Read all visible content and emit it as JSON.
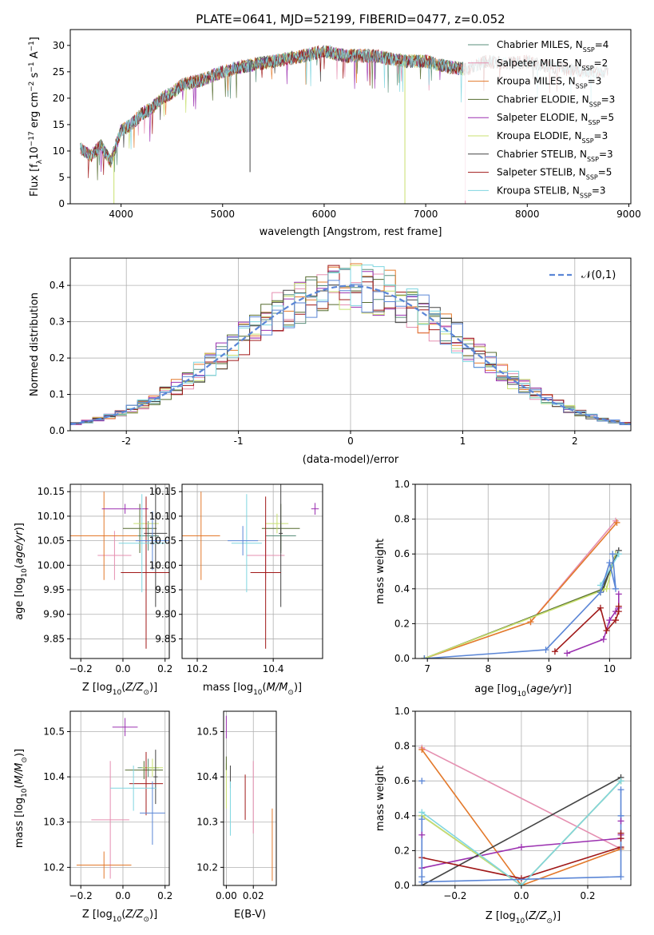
{
  "title": "PLATE=0641, MJD=52199, FIBERID=0477, z=0.052",
  "colors": {
    "ch_miles": "#5a8f7b",
    "sa_miles": "#e58fb0",
    "kr_miles": "#e3792b",
    "ch_elodie": "#556b2f",
    "sa_elodie": "#9b30b0",
    "kr_elodie": "#c8e070",
    "ch_stelib": "#444444",
    "sa_stelib": "#a01818",
    "kr_stelib": "#7fd6e0",
    "normal": "#5b86d6"
  },
  "chart_data": [
    {
      "type": "line",
      "panel": "spectrum",
      "title": "PLATE=0641, MJD=52199, FIBERID=0477, z=0.052",
      "xlabel": "wavelength [Angstrom, rest frame]",
      "ylabel": "Flux [f_λ 10^-17 erg cm^-2 s^-1 A^-1]",
      "xlim": [
        3500,
        9020
      ],
      "ylim": [
        0,
        33
      ],
      "xticks": [
        4000,
        5000,
        6000,
        7000,
        8000,
        9000
      ],
      "yticks": [
        0,
        5,
        10,
        15,
        20,
        25,
        30
      ],
      "grid": false,
      "legend_position": "right",
      "legend": [
        {
          "label": "Chabrier MILES, N",
          "sub": "SSP",
          "tail": "=4",
          "color": "ch_miles"
        },
        {
          "label": "Salpeter MILES, N",
          "sub": "SSP",
          "tail": "=2",
          "color": "sa_miles"
        },
        {
          "label": "Kroupa MILES, N",
          "sub": "SSP",
          "tail": "=3",
          "color": "kr_miles"
        },
        {
          "label": "Chabrier ELODIE, N",
          "sub": "SSP",
          "tail": "=3",
          "color": "ch_elodie"
        },
        {
          "label": "Salpeter ELODIE, N",
          "sub": "SSP",
          "tail": "=5",
          "color": "sa_elodie"
        },
        {
          "label": "Kroupa ELODIE, N",
          "sub": "SSP",
          "tail": "=3",
          "color": "kr_elodie"
        },
        {
          "label": "Chabrier STELIB, N",
          "sub": "SSP",
          "tail": "=3",
          "color": "ch_stelib"
        },
        {
          "label": "Salpeter STELIB, N",
          "sub": "SSP",
          "tail": "=5",
          "color": "sa_stelib"
        },
        {
          "label": "Kroupa STELIB, N",
          "sub": "SSP",
          "tail": "=3",
          "color": "kr_stelib"
        }
      ],
      "continuum": {
        "x": [
          3600,
          3700,
          3800,
          3900,
          4000,
          4100,
          4200,
          4300,
          4400,
          4500,
          4600,
          4800,
          5000,
          5200,
          5500,
          5800,
          6000,
          6200,
          6500,
          6800,
          7000,
          7200,
          7400,
          7600,
          7800,
          8000,
          8200,
          8400,
          8600,
          8800
        ],
        "y": [
          10.5,
          9,
          11,
          8,
          14,
          15,
          17,
          18,
          20,
          21,
          22.5,
          23.5,
          25,
          26,
          27,
          28,
          29,
          28,
          28,
          27,
          27,
          26,
          25.5,
          27,
          26.5,
          27,
          26,
          25.5,
          25,
          25
        ]
      },
      "dips": [
        {
          "x": 3930,
          "y": 0,
          "color": "kr_elodie"
        },
        {
          "x": 5270,
          "y": 6,
          "color": "ch_stelib"
        },
        {
          "x": 6795,
          "y": 0,
          "color": "kr_elodie"
        },
        {
          "x": 7390,
          "y": 0,
          "color": "sa_miles"
        }
      ]
    },
    {
      "type": "line",
      "panel": "residuals",
      "xlabel": "(data-model)/error",
      "ylabel": "Normed distribution",
      "xlim": [
        -2.5,
        2.5
      ],
      "ylim": [
        0,
        0.475
      ],
      "xticks": [
        -2,
        -1,
        0,
        1,
        2
      ],
      "yticks": [
        0.0,
        0.1,
        0.2,
        0.3,
        0.4
      ],
      "grid": true,
      "legend_label": "𝒩(0,1)",
      "legend_position": "upper right",
      "normal": {
        "mean": 0,
        "sigma": 1
      },
      "bins": 50
    },
    {
      "type": "scatter",
      "panel": "age-vs-Z",
      "xlabel": "Z [log10(Z/Z⊙)]",
      "ylabel": "age [log10(age/yr)]",
      "xlim": [
        -0.25,
        0.22
      ],
      "ylim": [
        9.81,
        10.165
      ],
      "xticks": [
        -0.2,
        0.0,
        0.2
      ],
      "yticks": [
        9.85,
        9.9,
        9.95,
        10.0,
        10.05,
        10.1,
        10.15
      ],
      "grid": true,
      "points": [
        {
          "model": "ch_miles",
          "x": 0.12,
          "y": 10.06,
          "ex": 0.05,
          "ey": 0.03
        },
        {
          "model": "sa_miles",
          "x": -0.04,
          "y": 10.02,
          "ex": 0.08,
          "ey": 0.05
        },
        {
          "model": "kr_miles",
          "x": -0.09,
          "y": 10.06,
          "ex": 0.16,
          "ey": 0.09
        },
        {
          "model": "ch_elodie",
          "x": 0.08,
          "y": 10.075,
          "ex": 0.08,
          "ey": 0.05
        },
        {
          "model": "sa_elodie",
          "x": 0.01,
          "y": 10.115,
          "ex": 0.11,
          "ey": 0.01
        },
        {
          "model": "kr_elodie",
          "x": 0.11,
          "y": 10.085,
          "ex": 0.06,
          "ey": 0.02
        },
        {
          "model": "ch_stelib",
          "x": 0.155,
          "y": 10.065,
          "ex": 0.055,
          "ey": 0.15
        },
        {
          "model": "sa_stelib",
          "x": 0.11,
          "y": 9.985,
          "ex": 0.12,
          "ey": 0.155
        },
        {
          "model": "kr_stelib",
          "x": 0.09,
          "y": 10.045,
          "ex": 0.11,
          "ey": 0.1
        },
        {
          "model": "normal",
          "x": 0.14,
          "y": 10.05,
          "ex": 0.08,
          "ey": 0.06
        }
      ]
    },
    {
      "type": "scatter",
      "panel": "age-vs-mass",
      "xlabel": "mass [log10(M/M⊙)]",
      "ylabel": "",
      "xlim": [
        10.16,
        10.53
      ],
      "ylim": [
        9.81,
        10.165
      ],
      "xticks": [
        10.2,
        10.4
      ],
      "yticks": [
        9.85,
        9.9,
        9.95,
        10.0,
        10.05,
        10.1,
        10.15
      ],
      "grid": true,
      "points": [
        {
          "model": "ch_miles",
          "x": 10.42,
          "y": 10.06,
          "ex": 0.04,
          "ey": 0.03
        },
        {
          "model": "sa_miles",
          "x": 10.38,
          "y": 10.02,
          "ex": 0.05,
          "ey": 0.05
        },
        {
          "model": "kr_miles",
          "x": 10.21,
          "y": 10.06,
          "ex": 0.05,
          "ey": 0.09
        },
        {
          "model": "ch_elodie",
          "x": 10.42,
          "y": 10.075,
          "ex": 0.05,
          "ey": 0.05
        },
        {
          "model": "sa_elodie",
          "x": 10.51,
          "y": 10.115,
          "ex": 0.01,
          "ey": 0.012
        },
        {
          "model": "kr_elodie",
          "x": 10.41,
          "y": 10.085,
          "ex": 0.03,
          "ey": 0.02
        },
        {
          "model": "ch_stelib",
          "x": 10.42,
          "y": 10.065,
          "ex": 0.005,
          "ey": 0.15
        },
        {
          "model": "sa_stelib",
          "x": 10.38,
          "y": 9.985,
          "ex": 0.04,
          "ey": 0.155
        },
        {
          "model": "kr_stelib",
          "x": 10.33,
          "y": 10.045,
          "ex": 0.04,
          "ey": 0.1
        },
        {
          "model": "normal",
          "x": 10.32,
          "y": 10.05,
          "ex": 0.04,
          "ey": 0.03
        }
      ]
    },
    {
      "type": "line",
      "panel": "weight-vs-age",
      "xlabel": "age [log10(age/yr)]",
      "ylabel": "mass weight",
      "xlim": [
        6.8,
        10.35
      ],
      "ylim": [
        0,
        1.0
      ],
      "xticks": [
        7,
        8,
        9,
        10
      ],
      "yticks": [
        0.0,
        0.2,
        0.4,
        0.6,
        0.8,
        1.0
      ],
      "grid": true,
      "series": [
        {
          "model": "sa_miles",
          "x": [
            8.7,
            10.1
          ],
          "y": [
            0.21,
            0.79
          ]
        },
        {
          "model": "kr_miles",
          "x": [
            6.95,
            8.7,
            10.12
          ],
          "y": [
            0.0,
            0.21,
            0.78
          ]
        },
        {
          "model": "ch_elodie",
          "x": [
            6.95,
            9.9,
            10.1
          ],
          "y": [
            0.0,
            0.4,
            0.6
          ]
        },
        {
          "model": "sa_elodie",
          "x": [
            9.3,
            9.9,
            10.0,
            10.1,
            10.15,
            10.15
          ],
          "y": [
            0.03,
            0.11,
            0.22,
            0.27,
            0.29,
            0.37
          ]
        },
        {
          "model": "kr_elodie",
          "x": [
            6.95,
            9.95,
            10.1
          ],
          "y": [
            0.0,
            0.4,
            0.6
          ]
        },
        {
          "model": "ch_stelib",
          "x": [
            9.85,
            10.15
          ],
          "y": [
            0.38,
            0.62
          ]
        },
        {
          "model": "sa_stelib",
          "x": [
            9.1,
            9.85,
            9.95,
            10.1,
            10.15,
            10.15
          ],
          "y": [
            0.04,
            0.29,
            0.16,
            0.22,
            0.27,
            0.3
          ]
        },
        {
          "model": "kr_stelib",
          "x": [
            9.85,
            10.15
          ],
          "y": [
            0.42,
            0.6
          ]
        },
        {
          "model": "normal",
          "x": [
            6.95,
            8.95,
            9.85,
            10.0,
            10.1,
            10.05
          ],
          "y": [
            0.0,
            0.05,
            0.38,
            0.55,
            0.4,
            0.6
          ]
        }
      ]
    },
    {
      "type": "scatter",
      "panel": "mass-vs-Z",
      "xlabel": "Z [log10(Z/Z⊙)]",
      "ylabel": "mass [log10(M/M⊙)]",
      "xlim": [
        -0.25,
        0.22
      ],
      "ylim": [
        10.16,
        10.545
      ],
      "xticks": [
        -0.2,
        0.0,
        0.2
      ],
      "yticks": [
        10.2,
        10.3,
        10.4,
        10.5
      ],
      "grid": true,
      "points": [
        {
          "model": "ch_miles",
          "x": 0.12,
          "y": 10.42,
          "ex": 0.05,
          "ey": 0.02
        },
        {
          "model": "sa_miles",
          "x": -0.06,
          "y": 10.305,
          "ex": 0.09,
          "ey": 0.13
        },
        {
          "model": "kr_miles",
          "x": -0.09,
          "y": 10.205,
          "ex": 0.13,
          "ey": 0.03
        },
        {
          "model": "ch_elodie",
          "x": 0.1,
          "y": 10.415,
          "ex": 0.09,
          "ey": 0.02
        },
        {
          "model": "sa_elodie",
          "x": 0.01,
          "y": 10.51,
          "ex": 0.06,
          "ey": 0.02
        },
        {
          "model": "kr_elodie",
          "x": 0.14,
          "y": 10.42,
          "ex": 0.05,
          "ey": 0.02
        },
        {
          "model": "ch_stelib",
          "x": 0.155,
          "y": 10.4,
          "ex": 0.01,
          "ey": 0.06
        },
        {
          "model": "sa_stelib",
          "x": 0.11,
          "y": 10.385,
          "ex": 0.08,
          "ey": 0.07
        },
        {
          "model": "kr_stelib",
          "x": 0.05,
          "y": 10.375,
          "ex": 0.11,
          "ey": 0.05
        },
        {
          "model": "normal",
          "x": 0.14,
          "y": 10.32,
          "ex": 0.06,
          "ey": 0.07
        }
      ]
    },
    {
      "type": "scatter",
      "panel": "mass-vs-ebv",
      "xlabel": "E(B-V)",
      "ylabel": "",
      "xlim": [
        -0.002,
        0.037
      ],
      "ylim": [
        10.16,
        10.545
      ],
      "xticks": [
        0.0,
        0.02
      ],
      "yticks": [
        10.2,
        10.3,
        10.4,
        10.5
      ],
      "grid": true,
      "points": [
        {
          "model": "sa_elodie",
          "x": 0.0,
          "y": 10.51,
          "ey": 0.025
        },
        {
          "model": "kr_elodie",
          "x": 0.0,
          "y": 10.38,
          "ey": 0.05
        },
        {
          "model": "ch_stelib",
          "x": 0.003,
          "y": 10.4,
          "ey": 0.025
        },
        {
          "model": "kr_stelib",
          "x": 0.003,
          "y": 10.33,
          "ey": 0.06
        },
        {
          "model": "sa_stelib",
          "x": 0.014,
          "y": 10.355,
          "ey": 0.05
        },
        {
          "model": "sa_miles",
          "x": 0.02,
          "y": 10.355,
          "ey": 0.08
        },
        {
          "model": "kr_miles",
          "x": 0.034,
          "y": 10.25,
          "ey": 0.08
        },
        {
          "model": "ch_elodie",
          "x": 0.0,
          "y": 10.43,
          "ey": 0.015
        }
      ]
    },
    {
      "type": "line",
      "panel": "weight-vs-Z",
      "xlabel": "Z [log10(Z/Z⊙)]",
      "ylabel": "mass weight",
      "xlim": [
        -0.32,
        0.33
      ],
      "ylim": [
        0,
        1.0
      ],
      "xticks": [
        -0.2,
        0.0,
        0.2
      ],
      "yticks": [
        0.0,
        0.2,
        0.4,
        0.6,
        0.8,
        1.0
      ],
      "grid": true,
      "series": [
        {
          "model": "sa_miles",
          "x": [
            -0.3,
            0.3
          ],
          "y": [
            0.79,
            0.21
          ]
        },
        {
          "model": "kr_miles",
          "x": [
            -0.3,
            0.0,
            0.3
          ],
          "y": [
            0.78,
            0.0,
            0.21
          ]
        },
        {
          "model": "ch_elodie",
          "x": [
            -0.3,
            0.0,
            0.3
          ],
          "y": [
            0.4,
            0.0,
            0.6
          ]
        },
        {
          "model": "sa_elodie",
          "x": [
            -0.3,
            0.0,
            0.3
          ],
          "y": [
            0.1,
            0.22,
            0.27
          ]
        },
        {
          "model": "kr_elodie",
          "x": [
            -0.3,
            0.0,
            0.3
          ],
          "y": [
            0.4,
            0.0,
            0.6
          ]
        },
        {
          "model": "ch_stelib",
          "x": [
            -0.3,
            0.3
          ],
          "y": [
            0.0,
            0.62
          ]
        },
        {
          "model": "sa_stelib",
          "x": [
            -0.3,
            0.0,
            0.3
          ],
          "y": [
            0.16,
            0.04,
            0.22
          ]
        },
        {
          "model": "kr_stelib",
          "x": [
            -0.3,
            0.0,
            0.3
          ],
          "y": [
            0.42,
            0.0,
            0.6
          ]
        },
        {
          "model": "normal",
          "x": [
            -0.3,
            0.3
          ],
          "y": [
            0.02,
            0.05
          ]
        }
      ],
      "extra_markers": [
        {
          "model": "normal",
          "x": [
            -0.3,
            -0.3,
            -0.3,
            0.3,
            0.3
          ],
          "y": [
            0.05,
            0.38,
            0.6,
            0.55,
            0.4
          ]
        },
        {
          "model": "sa_elodie",
          "x": [
            -0.3,
            0.3,
            0.3
          ],
          "y": [
            0.29,
            0.29,
            0.37
          ]
        },
        {
          "model": "sa_stelib",
          "x": [
            0.3,
            0.3
          ],
          "y": [
            0.27,
            0.3
          ]
        }
      ]
    }
  ]
}
